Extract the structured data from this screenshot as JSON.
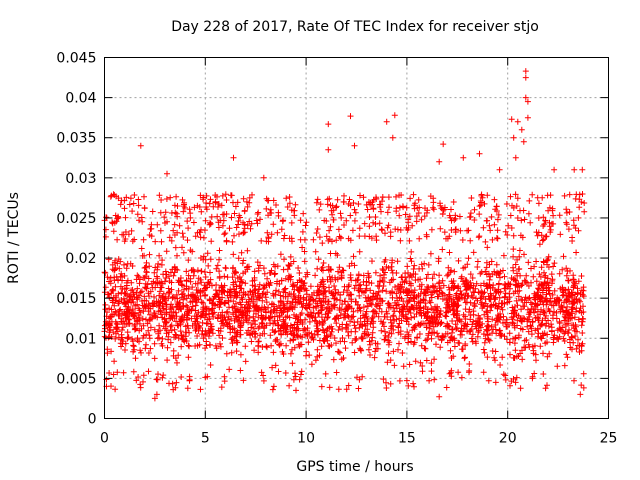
{
  "chart_data": {
    "type": "scatter",
    "title": "Day 228 of 2017, Rate Of TEC Index for receiver stjo",
    "xlabel": "GPS time / hours",
    "ylabel": "ROTI / TECUs",
    "xlim": [
      0,
      25
    ],
    "ylim": [
      0,
      0.045
    ],
    "x_ticks": [
      "0",
      "5",
      "10",
      "15",
      "20",
      "25"
    ],
    "y_ticks": [
      "0",
      "0.005",
      "0.01",
      "0.015",
      "0.02",
      "0.025",
      "0.03",
      "0.035",
      "0.04",
      "0.045"
    ],
    "grid": true,
    "marker": "+",
    "series": [
      {
        "name": "ROTI",
        "color": "#ff0000",
        "x_range": [
          0,
          23.8
        ],
        "typical_range": [
          0.005,
          0.022
        ],
        "notable_points": [
          {
            "x": 1.8,
            "y": 0.034
          },
          {
            "x": 3.1,
            "y": 0.0305
          },
          {
            "x": 6.4,
            "y": 0.0325
          },
          {
            "x": 7.9,
            "y": 0.03
          },
          {
            "x": 11.1,
            "y": 0.0367
          },
          {
            "x": 11.1,
            "y": 0.0335
          },
          {
            "x": 12.2,
            "y": 0.0377
          },
          {
            "x": 12.4,
            "y": 0.034
          },
          {
            "x": 14.0,
            "y": 0.037
          },
          {
            "x": 14.4,
            "y": 0.0378
          },
          {
            "x": 14.3,
            "y": 0.035
          },
          {
            "x": 16.8,
            "y": 0.0342
          },
          {
            "x": 16.6,
            "y": 0.032
          },
          {
            "x": 17.8,
            "y": 0.0325
          },
          {
            "x": 18.6,
            "y": 0.033
          },
          {
            "x": 19.6,
            "y": 0.031
          },
          {
            "x": 20.2,
            "y": 0.0373
          },
          {
            "x": 20.5,
            "y": 0.037
          },
          {
            "x": 20.3,
            "y": 0.035
          },
          {
            "x": 20.4,
            "y": 0.0325
          },
          {
            "x": 20.7,
            "y": 0.036
          },
          {
            "x": 20.9,
            "y": 0.0433
          },
          {
            "x": 20.9,
            "y": 0.0425
          },
          {
            "x": 20.9,
            "y": 0.04
          },
          {
            "x": 21.0,
            "y": 0.0395
          },
          {
            "x": 21.0,
            "y": 0.0375
          },
          {
            "x": 20.8,
            "y": 0.0345
          },
          {
            "x": 22.3,
            "y": 0.031
          },
          {
            "x": 23.3,
            "y": 0.031
          },
          {
            "x": 23.7,
            "y": 0.031
          },
          {
            "x": 2.5,
            "y": 0.0025
          },
          {
            "x": 2.6,
            "y": 0.003
          },
          {
            "x": 9.5,
            "y": 0.0035
          },
          {
            "x": 16.6,
            "y": 0.0027
          },
          {
            "x": 23.6,
            "y": 0.003
          },
          {
            "x": 0.1,
            "y": 0.004
          }
        ]
      }
    ]
  }
}
